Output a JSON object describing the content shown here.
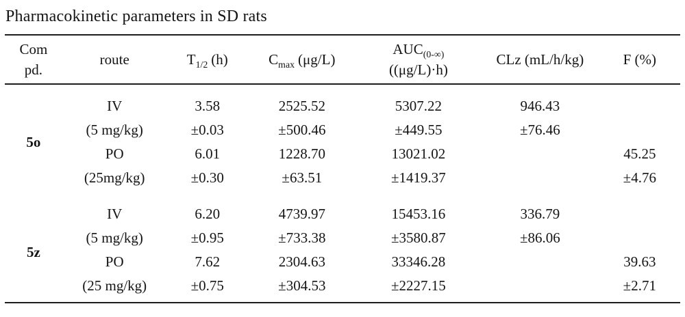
{
  "title": "Pharmacokinetic parameters in SD rats",
  "table": {
    "headers": {
      "compd": {
        "line1": "Com",
        "line2": "pd."
      },
      "route": "route",
      "t_half": {
        "base": "T",
        "sub": "1/2",
        "unit": "(h)"
      },
      "cmax": {
        "base": "C",
        "sub": "max",
        "unit": "(μg/L)"
      },
      "auc": {
        "base": "AUC",
        "sub": "(0-∞)",
        "line2": "((μg/L)·h)"
      },
      "clz": "CLz (mL/h/kg)",
      "f": "F (%)"
    },
    "groups": [
      {
        "compound": "5o",
        "rows": [
          {
            "route": "IV",
            "dose": "(5 mg/kg)",
            "t_half": "3.58",
            "t_half_sd": "±0.03",
            "cmax": "2525.52",
            "cmax_sd": "±500.46",
            "auc": "5307.22",
            "auc_sd": "±449.55",
            "clz": "946.43",
            "clz_sd": "±76.46",
            "f": "",
            "f_sd": ""
          },
          {
            "route": "PO",
            "dose": "(25mg/kg)",
            "t_half": "6.01",
            "t_half_sd": "±0.30",
            "cmax": "1228.70",
            "cmax_sd": "±63.51",
            "auc": "13021.02",
            "auc_sd": "±1419.37",
            "clz": "",
            "clz_sd": "",
            "f": "45.25",
            "f_sd": "±4.76"
          }
        ]
      },
      {
        "compound": "5z",
        "rows": [
          {
            "route": "IV",
            "dose": "(5 mg/kg)",
            "t_half": "6.20",
            "t_half_sd": "±0.95",
            "cmax": "4739.97",
            "cmax_sd": "±733.38",
            "auc": "15453.16",
            "auc_sd": "±3580.87",
            "clz": "336.79",
            "clz_sd": "±86.06",
            "f": "",
            "f_sd": ""
          },
          {
            "route": "PO",
            "dose": "(25 mg/kg)",
            "t_half": "7.62",
            "t_half_sd": "±0.75",
            "cmax": "2304.63",
            "cmax_sd": "±304.53",
            "auc": "33346.28",
            "auc_sd": "±2227.15",
            "clz": "",
            "clz_sd": "",
            "f": "39.63",
            "f_sd": "±2.71"
          }
        ]
      }
    ]
  }
}
